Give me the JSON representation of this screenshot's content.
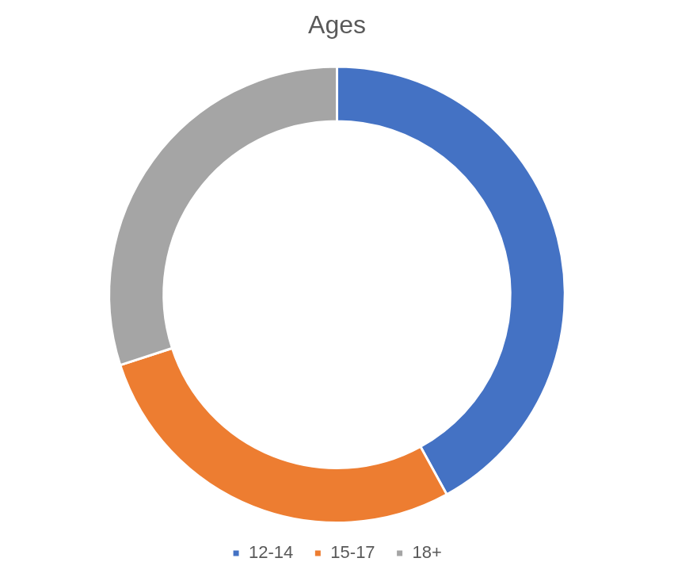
{
  "chart_data": {
    "type": "doughnut",
    "title": "Ages",
    "categories": [
      "12-14",
      "15-17",
      "18+"
    ],
    "values": [
      42,
      28,
      30
    ],
    "colors": [
      "#4472c4",
      "#ed7d31",
      "#a5a5a5"
    ],
    "legend": "bottom"
  }
}
